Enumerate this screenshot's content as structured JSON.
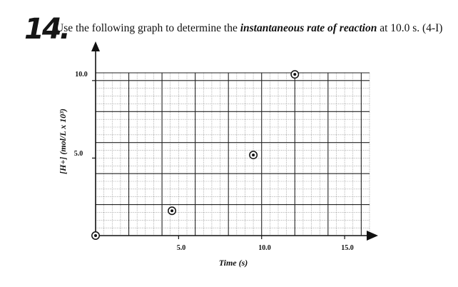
{
  "question": {
    "number": "14.",
    "text_before": "Use the following graph to determine the ",
    "text_emphasis": "instantaneous rate of reaction",
    "text_after": " at 10.0 s. (4-I)"
  },
  "chart_data": {
    "type": "scatter",
    "title": "",
    "xlabel": "Time (s)",
    "ylabel": "[H+] (mol/L x 10³)",
    "xlim": [
      0,
      16.5
    ],
    "ylim": [
      0,
      10.5
    ],
    "x_ticks": [
      "5.0",
      "10.0",
      "15.0"
    ],
    "y_ticks": [
      "5.0",
      "10.0"
    ],
    "grid": true,
    "points": [
      {
        "x": 0,
        "y": 0
      },
      {
        "x": 4.6,
        "y": 1.6
      },
      {
        "x": 9.5,
        "y": 5.2
      },
      {
        "x": 12.0,
        "y": 10.4
      }
    ]
  }
}
